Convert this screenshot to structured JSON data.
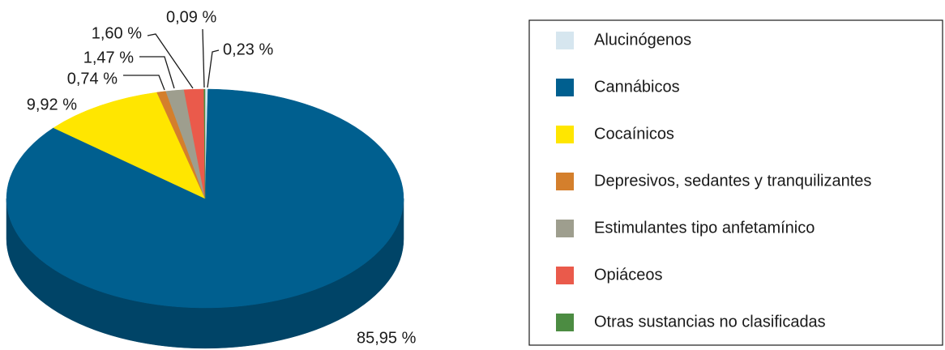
{
  "chart_data": {
    "type": "pie",
    "categories": [
      "Alucinógenos",
      "Cannábicos",
      "Cocaínicos",
      "Depresivos, sedantes y tranquilizantes",
      "Estimulantes tipo anfetamínico",
      "Opiáceos",
      "Otras sustancias no clasificadas"
    ],
    "values": [
      0.23,
      85.95,
      9.92,
      0.74,
      1.47,
      1.6,
      0.09
    ],
    "value_labels": [
      "0,23 %",
      "85,95 %",
      "9,92 %",
      "0,74 %",
      "1,47 %",
      "1,60 %",
      "0,09 %"
    ],
    "colors": [
      "#d6e6ef",
      "#005f8f",
      "#ffe600",
      "#d47f2c",
      "#9e9e8e",
      "#ea5a4b",
      "#4c8c42"
    ],
    "legend": "right"
  }
}
